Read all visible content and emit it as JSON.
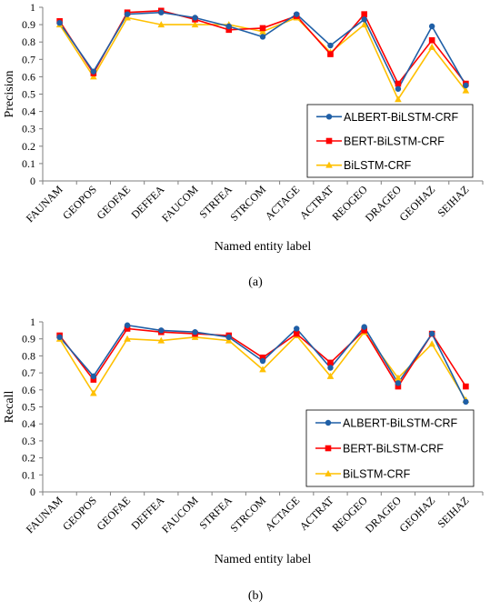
{
  "chart_data": [
    {
      "type": "line",
      "panel_label": "(a)",
      "xlabel": "Named entity label",
      "ylabel": "Precision",
      "ylim": [
        0,
        1
      ],
      "yticks": [
        "0",
        "0.1",
        "0.2",
        "0.3",
        "0.4",
        "0.5",
        "0.6",
        "0.7",
        "0.8",
        "0.9",
        "1"
      ],
      "grid": false,
      "legend_position": "bottom-right",
      "categories": [
        "FAUNAM",
        "GEOPOS",
        "GEOFAE",
        "DEFFEA",
        "FAUCOM",
        "STRFEA",
        "STRCOM",
        "ACTAGE",
        "ACTRAT",
        "REOGEO",
        "DRAGEO",
        "GEOHAZ",
        "SEIHAZ"
      ],
      "series": [
        {
          "name": "ALBERT-BiLSTM-CRF",
          "color": "#1f5fa6",
          "marker": "circle",
          "values": [
            0.91,
            0.63,
            0.96,
            0.97,
            0.94,
            0.89,
            0.83,
            0.96,
            0.78,
            0.93,
            0.53,
            0.89,
            0.55
          ]
        },
        {
          "name": "BERT-BiLSTM-CRF",
          "color": "#ff0000",
          "marker": "square",
          "values": [
            0.92,
            0.62,
            0.97,
            0.98,
            0.93,
            0.87,
            0.88,
            0.95,
            0.73,
            0.96,
            0.56,
            0.81,
            0.56
          ]
        },
        {
          "name": "BiLSTM-CRF",
          "color": "#ffc000",
          "marker": "triangle",
          "values": [
            0.9,
            0.6,
            0.94,
            0.9,
            0.9,
            0.9,
            0.86,
            0.94,
            0.74,
            0.9,
            0.47,
            0.77,
            0.52
          ]
        }
      ]
    },
    {
      "type": "line",
      "panel_label": "(b)",
      "xlabel": "Named entity label",
      "ylabel": "Recall",
      "ylim": [
        0,
        1
      ],
      "yticks": [
        "0",
        "0.1",
        "0.2",
        "0.3",
        "0.4",
        "0.5",
        "0.6",
        "0.7",
        "0.8",
        "0.9",
        "1"
      ],
      "grid": false,
      "legend_position": "bottom-right",
      "categories": [
        "FAUNAM",
        "GEOPOS",
        "GEOFAE",
        "DEFFEA",
        "FAUCOM",
        "STRFEA",
        "STRCOM",
        "ACTAGE",
        "ACTRAT",
        "REOGEO",
        "DRAGEO",
        "GEOHAZ",
        "SEIHAZ"
      ],
      "series": [
        {
          "name": "ALBERT-BiLSTM-CRF",
          "color": "#1f5fa6",
          "marker": "circle",
          "values": [
            0.91,
            0.68,
            0.98,
            0.95,
            0.94,
            0.91,
            0.77,
            0.96,
            0.73,
            0.97,
            0.64,
            0.93,
            0.53
          ]
        },
        {
          "name": "BERT-BiLSTM-CRF",
          "color": "#ff0000",
          "marker": "square",
          "values": [
            0.92,
            0.66,
            0.96,
            0.94,
            0.93,
            0.92,
            0.79,
            0.93,
            0.76,
            0.95,
            0.62,
            0.93,
            0.62
          ]
        },
        {
          "name": "BiLSTM-CRF",
          "color": "#ffc000",
          "marker": "triangle",
          "values": [
            0.9,
            0.58,
            0.9,
            0.89,
            0.91,
            0.89,
            0.72,
            0.92,
            0.68,
            0.94,
            0.67,
            0.87,
            0.54
          ]
        }
      ]
    }
  ]
}
